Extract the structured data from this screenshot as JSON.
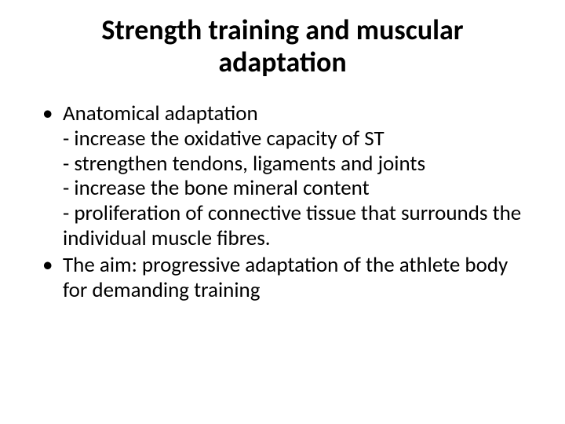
{
  "slide": {
    "title": "Strength training and muscular adaptation",
    "title_fontsize": 36,
    "title_fontweight": 700,
    "title_align": "center",
    "body_fontsize": 27,
    "text_color": "#000000",
    "background_color": "#ffffff",
    "bullets": [
      {
        "lead": "Anatomical adaptation",
        "subs": [
          "- increase the oxidative capacity of ST",
          "- strengthen tendons, ligaments and joints",
          "- increase the bone mineral content",
          "- proliferation of connective tissue that surrounds the individual muscle fibres."
        ]
      },
      {
        "lead": "The aim: progressive adaptation of the athlete body for demanding training",
        "subs": []
      }
    ]
  }
}
